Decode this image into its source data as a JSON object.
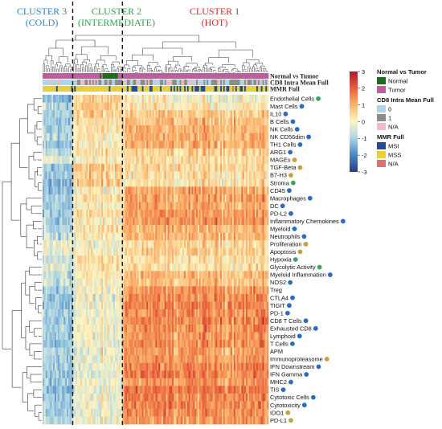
{
  "clusters": [
    {
      "title": "CLUSTER 3",
      "subtitle": "(COLD)",
      "color": "#2a86c8"
    },
    {
      "title": "CLUSTER 2",
      "subtitle": "(INTERMEDIATE)",
      "color": "#2aa84a"
    },
    {
      "title": "CLUSTER 1",
      "subtitle": "(HOT)",
      "color": "#e0282a"
    }
  ],
  "annotation_tracks": [
    "Normal vs Tumor",
    "CD8 Intra Mean Full",
    "MMR Full"
  ],
  "legends": [
    {
      "title": "Normal vs Tumor",
      "items": [
        {
          "label": "Normal",
          "color": "#1e6b1e"
        },
        {
          "label": "Tumor",
          "color": "#c45aa0"
        }
      ]
    },
    {
      "title": "CD8 Intra Mean Full",
      "items": [
        {
          "label": "0",
          "color": "#a8d8ea"
        },
        {
          "label": "1",
          "color": "#8c8c8c"
        },
        {
          "label": "N/A",
          "color": "#f4b8c8"
        }
      ]
    },
    {
      "title": "MMR Full",
      "items": [
        {
          "label": "MSI",
          "color": "#1f4e96"
        },
        {
          "label": "MSS",
          "color": "#e8d035"
        },
        {
          "label": "N/A",
          "color": "#e07070"
        }
      ]
    }
  ],
  "colors": {
    "dot_green": "#3aa55a",
    "dot_blue": "#2a6cc0",
    "dot_gold": "#c9a040",
    "scale_low": "#2b3a8c",
    "scale_mid": "#fdf6c4",
    "scale_high": "#b2182b"
  },
  "chart_data": {
    "type": "heatmap",
    "color_scale": {
      "min": -3,
      "max": 3,
      "ticks": [
        "3",
        "2",
        "1",
        "0",
        "-1",
        "-2",
        "-3"
      ]
    },
    "cluster_bounds_columns": [
      20,
      53
    ],
    "n_samples": 150,
    "rows": [
      {
        "label": "Endothelial Cells",
        "dot": "green",
        "profile": [
          -1.2,
          0.4,
          0.0
        ]
      },
      {
        "label": "Mast Cells",
        "dot": "blue",
        "profile": [
          -0.9,
          0.6,
          0.2
        ]
      },
      {
        "label": "IL10",
        "dot": "blue",
        "profile": [
          -1.0,
          0.5,
          0.6
        ]
      },
      {
        "label": "B Cells",
        "dot": "blue",
        "profile": [
          -1.1,
          0.3,
          0.7
        ]
      },
      {
        "label": "NK Cells",
        "dot": "blue",
        "profile": [
          -1.0,
          0.2,
          0.8
        ]
      },
      {
        "label": "NK CD56dim",
        "dot": "blue",
        "profile": [
          -0.9,
          0.1,
          0.9
        ]
      },
      {
        "label": "TH1 Cells",
        "dot": "blue",
        "profile": [
          -1.0,
          0.0,
          0.9
        ]
      },
      {
        "label": "ARG1",
        "dot": "blue",
        "profile": [
          -0.8,
          0.3,
          0.5
        ]
      },
      {
        "label": "MAGEs",
        "dot": "gold",
        "profile": [
          -0.3,
          0.0,
          0.4
        ]
      },
      {
        "label": "TGF-Beta",
        "dot": "gold",
        "profile": [
          -1.1,
          0.6,
          0.4
        ]
      },
      {
        "label": "B7-H3",
        "dot": "gold",
        "profile": [
          -1.0,
          0.5,
          0.3
        ]
      },
      {
        "label": "Stroma",
        "dot": "green",
        "profile": [
          -1.3,
          0.7,
          0.2
        ]
      },
      {
        "label": "CD45",
        "dot": "blue",
        "profile": [
          -1.2,
          0.1,
          1.0
        ]
      },
      {
        "label": "Macrophages",
        "dot": "blue",
        "profile": [
          -1.0,
          0.2,
          1.1
        ]
      },
      {
        "label": "DC",
        "dot": "blue",
        "profile": [
          -0.9,
          0.1,
          1.0
        ]
      },
      {
        "label": "PD-L2",
        "dot": "blue",
        "profile": [
          -1.0,
          0.3,
          1.1
        ]
      },
      {
        "label": "Inflammatory Chemokines",
        "dot": "blue",
        "profile": [
          -1.1,
          0.0,
          1.2
        ]
      },
      {
        "label": "Myeloid",
        "dot": "blue",
        "profile": [
          -0.9,
          0.2,
          0.9
        ]
      },
      {
        "label": "Neutrophils",
        "dot": "blue",
        "profile": [
          -0.7,
          0.1,
          0.8
        ]
      },
      {
        "label": "Proliferation",
        "dot": "gold",
        "profile": [
          -0.2,
          -0.1,
          0.4
        ]
      },
      {
        "label": "Apoptosis",
        "dot": "gold",
        "profile": [
          -0.3,
          0.0,
          0.5
        ]
      },
      {
        "label": "Hypoxia",
        "dot": "green",
        "profile": [
          -0.6,
          0.4,
          0.3
        ]
      },
      {
        "label": "Glycolytic Activity",
        "dot": "green",
        "profile": [
          -0.4,
          0.2,
          0.3
        ]
      },
      {
        "label": "Myeloid Inflammation",
        "dot": "blue",
        "profile": [
          -0.7,
          0.1,
          0.8
        ]
      },
      {
        "label": "NOS2",
        "dot": "blue",
        "profile": [
          -0.6,
          0.0,
          0.7
        ]
      },
      {
        "label": "Treg",
        "dot": "",
        "profile": [
          -1.0,
          -0.1,
          1.2
        ]
      },
      {
        "label": "CTLA4",
        "dot": "blue",
        "profile": [
          -1.1,
          -0.2,
          1.3
        ]
      },
      {
        "label": "TIGIT",
        "dot": "blue",
        "profile": [
          -1.1,
          -0.2,
          1.4
        ]
      },
      {
        "label": "PD-1",
        "dot": "blue",
        "profile": [
          -1.0,
          -0.2,
          1.3
        ]
      },
      {
        "label": "CD8 T Cells",
        "dot": "blue",
        "profile": [
          -1.1,
          -0.1,
          1.4
        ]
      },
      {
        "label": "Exhausted CD8",
        "dot": "blue",
        "profile": [
          -1.0,
          -0.1,
          1.3
        ]
      },
      {
        "label": "Lymphoid",
        "dot": "blue",
        "profile": [
          -1.0,
          -0.1,
          1.2
        ]
      },
      {
        "label": "T Cells",
        "dot": "blue",
        "profile": [
          -1.1,
          -0.2,
          1.3
        ]
      },
      {
        "label": "APM",
        "dot": "",
        "profile": [
          -0.8,
          -0.2,
          1.1
        ]
      },
      {
        "label": "Immunoproteasome",
        "dot": "gold",
        "profile": [
          -0.9,
          -0.2,
          1.2
        ]
      },
      {
        "label": "IFN Downstream",
        "dot": "blue",
        "profile": [
          -1.0,
          -0.2,
          1.4
        ]
      },
      {
        "label": "IFN Gamma",
        "dot": "blue",
        "profile": [
          -1.1,
          -0.3,
          1.5
        ]
      },
      {
        "label": "MHC2",
        "dot": "blue",
        "profile": [
          -1.0,
          -0.1,
          1.2
        ]
      },
      {
        "label": "TIS",
        "dot": "blue",
        "profile": [
          -1.2,
          -0.2,
          1.5
        ]
      },
      {
        "label": "Cytotoxic Cells",
        "dot": "blue",
        "profile": [
          -1.1,
          -0.2,
          1.4
        ]
      },
      {
        "label": "Cytotoxicity",
        "dot": "blue",
        "profile": [
          -1.1,
          -0.2,
          1.4
        ]
      },
      {
        "label": "IDO1",
        "dot": "gold",
        "profile": [
          -1.0,
          -0.2,
          1.3
        ]
      },
      {
        "label": "PD-L1",
        "dot": "gold",
        "profile": [
          -0.9,
          -0.1,
          1.2
        ]
      }
    ]
  }
}
